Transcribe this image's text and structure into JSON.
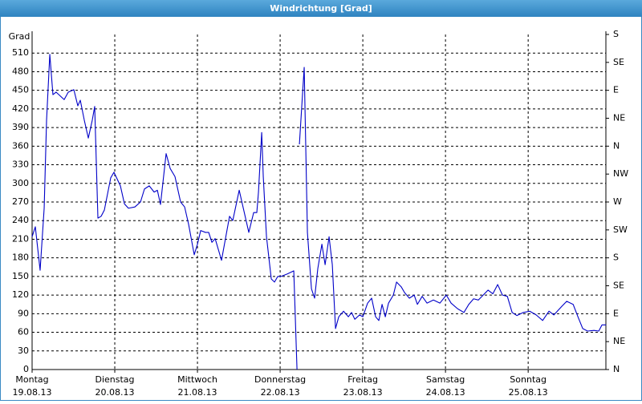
{
  "chart_data": {
    "type": "line",
    "title": "Windrichtung [Grad]",
    "y_label": "Grad",
    "xlim": [
      0,
      6.94
    ],
    "xticks": [
      {
        "value": 0,
        "label": "Montag"
      },
      {
        "value": 1,
        "label": "Dienstag"
      },
      {
        "value": 2,
        "label": "Mittwoch"
      },
      {
        "value": 3,
        "label": "Donnerstag"
      },
      {
        "value": 4,
        "label": "Freitag"
      },
      {
        "value": 5,
        "label": "Samstag"
      },
      {
        "value": 6,
        "label": "Sonntag"
      }
    ],
    "xtick_dates": [
      "19.08.13",
      "20.08.13",
      "21.08.13",
      "22.08.13",
      "23.08.13",
      "24.08.13",
      "25.08.13"
    ],
    "ylim": [
      0,
      540
    ],
    "yticks": [
      0,
      30,
      60,
      90,
      120,
      150,
      180,
      210,
      240,
      270,
      300,
      330,
      360,
      390,
      420,
      450,
      480,
      510
    ],
    "y2lim": [
      0,
      540
    ],
    "y2ticks": [
      {
        "value": 0,
        "label": "N"
      },
      {
        "value": 45,
        "label": "NE"
      },
      {
        "value": 90,
        "label": "E"
      },
      {
        "value": 135,
        "label": "SE"
      },
      {
        "value": 180,
        "label": "S"
      },
      {
        "value": 225,
        "label": "SW"
      },
      {
        "value": 270,
        "label": "W"
      },
      {
        "value": 315,
        "label": "NW"
      },
      {
        "value": 360,
        "label": "N"
      },
      {
        "value": 405,
        "label": "NE"
      },
      {
        "value": 450,
        "label": "E"
      },
      {
        "value": 495,
        "label": "SE"
      },
      {
        "value": 540,
        "label": "S"
      }
    ],
    "grid": true,
    "color": "#0000c8",
    "x": [
      0,
      0.039,
      0.097,
      0.146,
      0.175,
      0.214,
      0.252,
      0.291,
      0.388,
      0.437,
      0.505,
      0.553,
      0.583,
      0.631,
      0.68,
      0.728,
      0.757,
      0.796,
      0.835,
      0.874,
      0.951,
      0.99,
      1.068,
      1.117,
      1.165,
      1.243,
      1.311,
      1.359,
      1.417,
      1.476,
      1.515,
      1.553,
      1.621,
      1.67,
      1.728,
      1.796,
      1.845,
      1.893,
      1.961,
      2.0,
      2.039,
      2.097,
      2.136,
      2.175,
      2.214,
      2.291,
      2.388,
      2.427,
      2.505,
      2.621,
      2.68,
      2.718,
      2.738,
      2.777,
      2.796,
      2.835,
      2.893,
      2.932,
      2.971,
      3.01,
      3.087,
      3.165,
      3.204,
      3.218,
      3.233,
      3.291,
      3.33,
      3.379,
      3.417,
      3.456,
      3.505,
      3.544,
      3.592,
      3.631,
      3.67,
      3.709,
      3.767,
      3.825,
      3.864,
      3.903,
      3.961,
      4.0,
      4.058,
      4.107,
      4.155,
      4.194,
      4.233,
      4.272,
      4.311,
      4.369,
      4.408,
      4.466,
      4.505,
      4.563,
      4.621,
      4.66,
      4.718,
      4.777,
      4.854,
      4.932,
      5.01,
      5.068,
      5.146,
      5.223,
      5.282,
      5.34,
      5.398,
      5.456,
      5.515,
      5.573,
      5.631,
      5.689,
      5.748,
      5.806,
      5.864,
      5.942,
      6.019,
      6.097,
      6.175,
      6.252,
      6.311,
      6.408,
      6.466,
      6.544,
      6.602,
      6.66,
      6.718,
      6.796,
      6.854,
      6.893,
      6.942
    ],
    "values": [
      214,
      230,
      160,
      260,
      402,
      508,
      443,
      447,
      435,
      447,
      451,
      425,
      434,
      402,
      373,
      402,
      424,
      244,
      247,
      257,
      309,
      318,
      296,
      267,
      260,
      262,
      270,
      291,
      296,
      286,
      289,
      266,
      348,
      324,
      311,
      270,
      262,
      234,
      185,
      202,
      224,
      221,
      221,
      205,
      211,
      176,
      247,
      240,
      289,
      221,
      253,
      253,
      286,
      382,
      311,
      214,
      146,
      141,
      150,
      150,
      154,
      159,
      0,
      null,
      363,
      487,
      221,
      130,
      115,
      163,
      202,
      169,
      214,
      169,
      66,
      85,
      94,
      85,
      92,
      81,
      88,
      85,
      107,
      115,
      85,
      79,
      105,
      85,
      107,
      120,
      141,
      133,
      124,
      115,
      120,
      105,
      118,
      107,
      112,
      107,
      120,
      107,
      98,
      92,
      105,
      114,
      112,
      120,
      128,
      122,
      137,
      120,
      118,
      92,
      87,
      92,
      94,
      88,
      79,
      94,
      88,
      102,
      110,
      105,
      85,
      66,
      62,
      63,
      62,
      72,
      72
    ]
  }
}
